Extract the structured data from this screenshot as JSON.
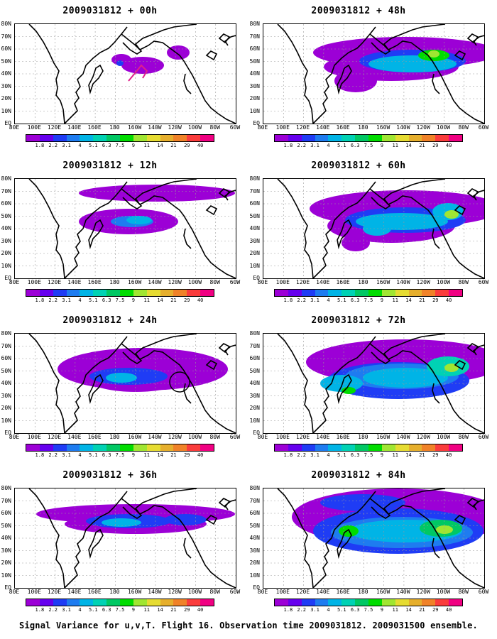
{
  "caption": "Signal Variance for u,v,T. Flight 16. Observation time 2009031812. 2009031500 ensemble.",
  "lat_labels": [
    "80N",
    "70N",
    "60N",
    "50N",
    "40N",
    "30N",
    "20N",
    "10N",
    "EQ"
  ],
  "lon_labels": [
    "80E",
    "100E",
    "120E",
    "140E",
    "160E",
    "180",
    "160W",
    "140W",
    "120W",
    "100W",
    "80W",
    "60W"
  ],
  "colorbar": {
    "labels": [
      "1.8",
      "2.2",
      "3.1",
      "4",
      "5.1",
      "6.3",
      "7.5",
      "9",
      "11",
      "14",
      "21",
      "29",
      "40"
    ],
    "colors": [
      "#9c00d6",
      "#6600ee",
      "#1f3cf5",
      "#1e7cf0",
      "#00b4e6",
      "#00d2b4",
      "#00c864",
      "#00dc00",
      "#a0e632",
      "#e6dc32",
      "#e6af2d",
      "#f08228",
      "#fa3c3c",
      "#f00082"
    ]
  },
  "panels": [
    {
      "title": "2009031812 + 00h"
    },
    {
      "title": "2009031812 + 48h"
    },
    {
      "title": "2009031812 + 12h"
    },
    {
      "title": "2009031812 + 60h"
    },
    {
      "title": "2009031812 + 24h"
    },
    {
      "title": "2009031812 + 72h"
    },
    {
      "title": "2009031812 + 36h"
    },
    {
      "title": "2009031812 + 84h"
    }
  ]
}
